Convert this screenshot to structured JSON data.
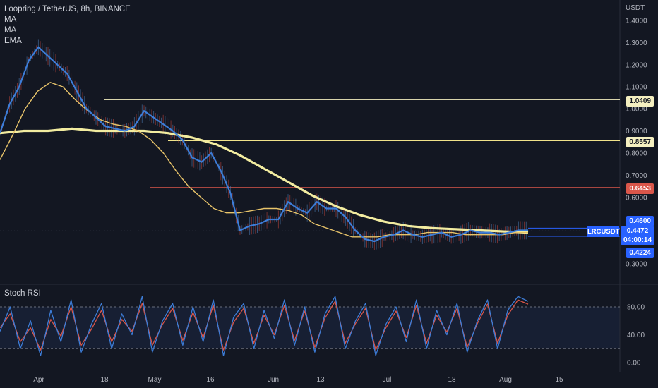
{
  "header": {
    "title": "Loopring / TetherUS, 8h, BINANCE",
    "indicators": [
      "MA",
      "MA",
      "EMA"
    ],
    "currency": "USDT"
  },
  "rsi_label": "Stoch RSI",
  "price_tags": {
    "resistance_1": "1.0409",
    "resistance_2": "0.8557",
    "support_1": "0.6453",
    "high_marker": "0.4600",
    "symbol": "LRCUSDT",
    "last_price": "0.4472",
    "countdown": "04:00:14",
    "low_marker": "0.4224"
  },
  "colors": {
    "background": "#131722",
    "price_line": "#3d7dd8",
    "ma_fast": "#e8c46a",
    "ma_slow": "#f2eca0",
    "resistance_line": "#f4efc0",
    "support_line": "#d9564a",
    "rsi_k": "#3d7dd8",
    "rsi_d": "#d9564a"
  },
  "chart_data": [
    {
      "type": "line",
      "title": "Loopring / TetherUS, 8h, BINANCE",
      "ylabel": "USDT",
      "y_ticks": [
        "1.4000",
        "1.3000",
        "1.2000",
        "1.1000",
        "1.0000",
        "0.9000",
        "0.8000",
        "0.7000",
        "0.6000",
        "0.3000"
      ],
      "x_ticks": [
        "Apr",
        "18",
        "May",
        "16",
        "Jun",
        "13",
        "Jul",
        "18",
        "Aug",
        "15"
      ],
      "horizontal_levels": [
        1.0409,
        0.8557,
        0.6453
      ],
      "series": [
        {
          "name": "LRCUSDT",
          "values": [
            0.89,
            1.02,
            1.1,
            1.22,
            1.28,
            1.24,
            1.2,
            1.16,
            1.08,
            1.0,
            0.96,
            0.92,
            0.91,
            0.9,
            0.92,
            0.99,
            0.96,
            0.93,
            0.9,
            0.86,
            0.78,
            0.76,
            0.8,
            0.72,
            0.62,
            0.45,
            0.47,
            0.48,
            0.5,
            0.5,
            0.58,
            0.55,
            0.53,
            0.58,
            0.55,
            0.55,
            0.51,
            0.45,
            0.41,
            0.4,
            0.42,
            0.43,
            0.45,
            0.43,
            0.42,
            0.43,
            0.44,
            0.42,
            0.43,
            0.45,
            0.44,
            0.44,
            0.43,
            0.44,
            0.45,
            0.45
          ]
        },
        {
          "values": [
            0.77,
            0.88,
            1.0,
            1.08,
            1.12,
            1.1,
            1.04,
            0.99,
            0.95,
            0.93,
            0.92,
            0.9,
            0.86,
            0.8,
            0.72,
            0.65,
            0.6,
            0.55,
            0.53,
            0.53,
            0.54,
            0.55,
            0.55,
            0.54,
            0.52,
            0.48,
            0.46,
            0.44,
            0.42,
            0.42,
            0.42,
            0.43,
            0.43,
            0.43,
            0.44,
            0.44,
            0.44,
            0.43,
            0.43,
            0.43,
            0.43,
            0.44,
            0.44
          ]
        },
        {
          "values": [
            0.89,
            0.9,
            0.9,
            0.91,
            0.9,
            0.9,
            0.9,
            0.89,
            0.87,
            0.84,
            0.79,
            0.73,
            0.67,
            0.61,
            0.56,
            0.52,
            0.49,
            0.47,
            0.46,
            0.455,
            0.45,
            0.445,
            0.44
          ]
        }
      ]
    },
    {
      "type": "line",
      "title": "Stoch RSI",
      "y_ticks": [
        "80.00",
        "40.00",
        "0.00"
      ],
      "bands": [
        80,
        20
      ],
      "series": [
        {
          "values": [
            45,
            80,
            20,
            60,
            10,
            75,
            30,
            90,
            15,
            55,
            85,
            20,
            70,
            40,
            95,
            15,
            60,
            85,
            25,
            80,
            30,
            90,
            10,
            65,
            85,
            20,
            75,
            35,
            90,
            25,
            80,
            15,
            70,
            95,
            20,
            60,
            85,
            10,
            55,
            80,
            30,
            90,
            20,
            75,
            40,
            85,
            15,
            60,
            90,
            20,
            75,
            95,
            88
          ]
        },
        {
          "values": [
            50,
            70,
            30,
            50,
            18,
            62,
            38,
            80,
            25,
            48,
            75,
            30,
            62,
            45,
            85,
            25,
            55,
            78,
            32,
            72,
            36,
            82,
            18,
            58,
            78,
            28,
            68,
            40,
            82,
            32,
            74,
            22,
            64,
            88,
            28,
            56,
            78,
            18,
            50,
            74,
            36,
            82,
            28,
            68,
            44,
            78,
            22,
            56,
            84,
            28,
            68,
            90,
            84
          ]
        }
      ]
    }
  ]
}
